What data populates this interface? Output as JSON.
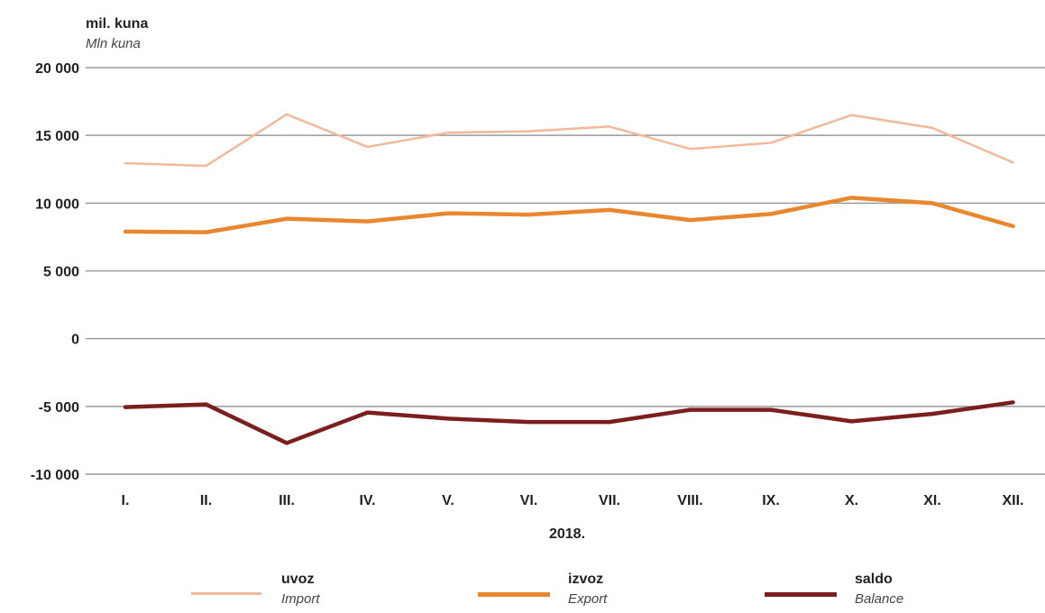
{
  "chart_data": {
    "type": "line",
    "ylabel": "mil. kuna",
    "ylabel_en": "Mln kuna",
    "xlabel": "2018.",
    "categories": [
      "I.",
      "II.",
      "III.",
      "IV.",
      "V.",
      "VI.",
      "VII.",
      "VIII.",
      "IX.",
      "X.",
      "XI.",
      "XII."
    ],
    "ylim": [
      -10000,
      20000
    ],
    "yticks": [
      20000,
      15000,
      10000,
      5000,
      0,
      -5000,
      -10000
    ],
    "ytick_labels": [
      "20 000",
      "15 000",
      "10 000",
      "5 000",
      "0",
      "-5 000",
      "-10 000"
    ],
    "grid": true,
    "legend_position": "bottom",
    "series": [
      {
        "name": "uvoz",
        "name_en": "Import",
        "color": "#efb99a",
        "values": [
          12950,
          12750,
          16550,
          14150,
          15200,
          15300,
          15650,
          14000,
          14450,
          16500,
          15550,
          13000
        ]
      },
      {
        "name": "izvoz",
        "name_en": "Export",
        "color": "#e8872e",
        "values": [
          7900,
          7850,
          8850,
          8650,
          9250,
          9150,
          9500,
          8750,
          9200,
          10400,
          10000,
          8300
        ]
      },
      {
        "name": "saldo",
        "name_en": "Balance",
        "color": "#7b1e1e",
        "values": [
          -5050,
          -4850,
          -7700,
          -5450,
          -5900,
          -6150,
          -6150,
          -5250,
          -5250,
          -6100,
          -5550,
          -4700
        ]
      }
    ]
  }
}
